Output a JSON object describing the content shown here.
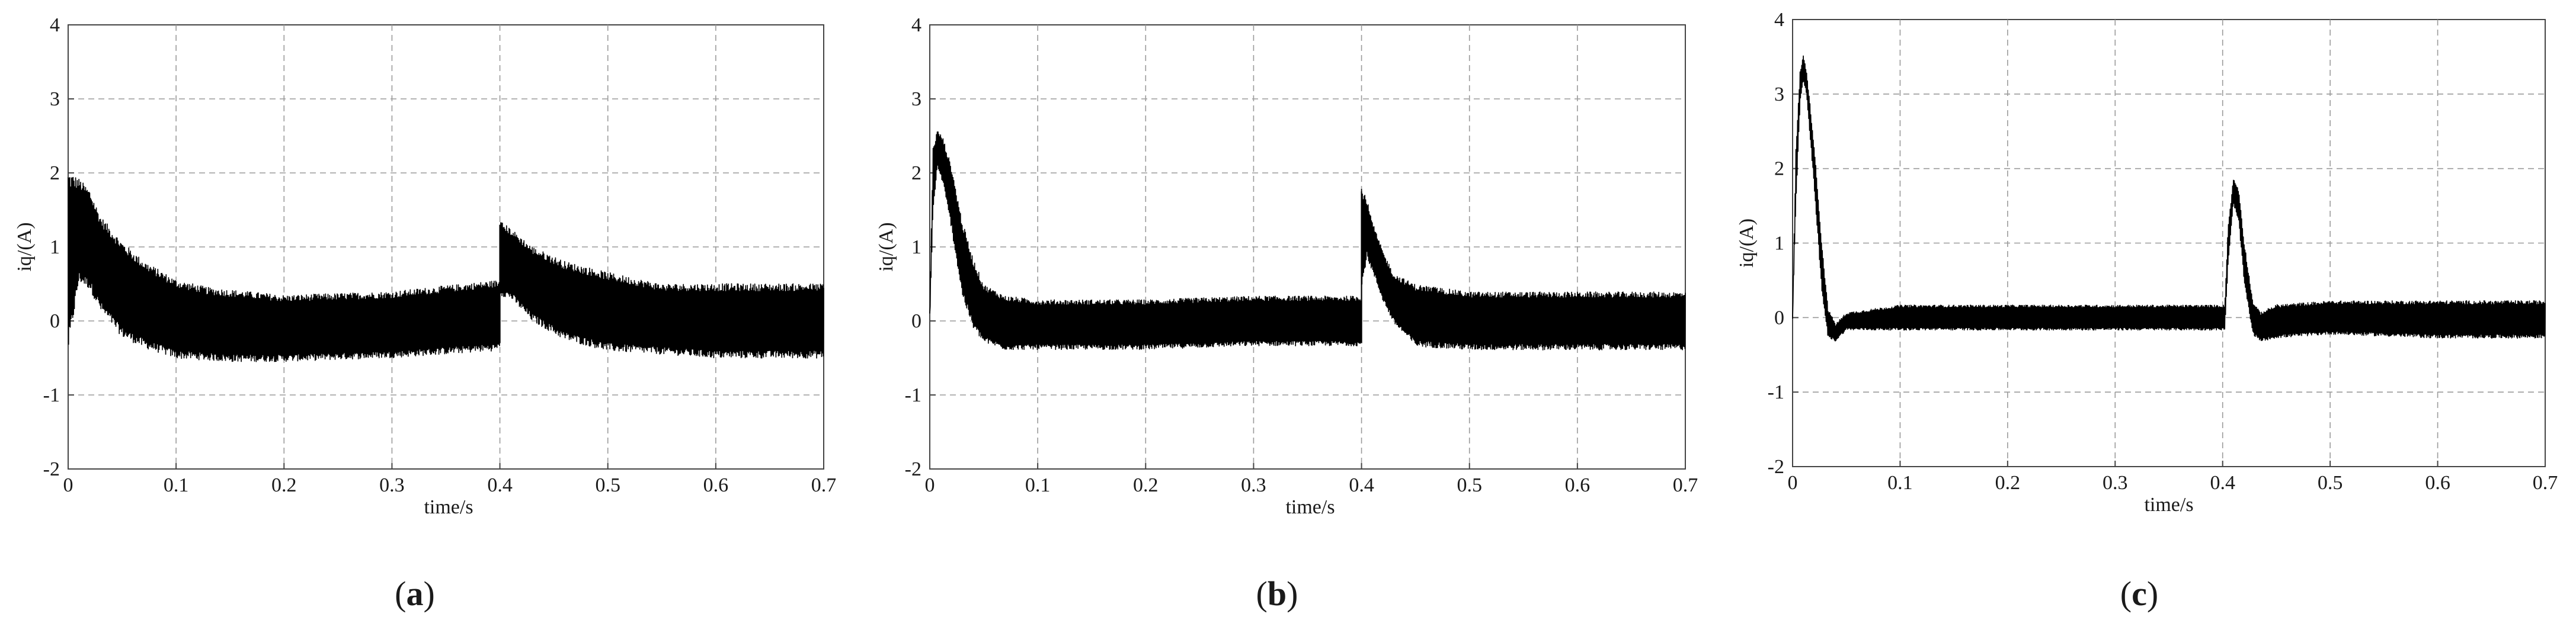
{
  "chart_data": [
    {
      "panel": "a",
      "type": "line",
      "caption_letter": "a",
      "xlabel": "time/s",
      "ylabel": "iq/(A)",
      "xlim": [
        0,
        0.7
      ],
      "ylim": [
        -2,
        4
      ],
      "x_ticks": [
        0,
        0.1,
        0.2,
        0.3,
        0.4,
        0.5,
        0.6,
        0.7
      ],
      "x_tick_labels": [
        "0",
        "0.1",
        "0.2",
        "0.3",
        "0.4",
        "0.5",
        "0.6",
        "0.7"
      ],
      "y_ticks": [
        -2,
        -1,
        0,
        1,
        2,
        3,
        4
      ],
      "y_tick_labels": [
        "-2",
        "-1",
        "0",
        "1",
        "2",
        "3",
        "4"
      ],
      "grid": true,
      "grid_style": "dashed",
      "series": [
        {
          "color": "#000000",
          "upper": [
            [
              0.0,
              1.9
            ],
            [
              0.01,
              1.85
            ],
            [
              0.02,
              1.7
            ],
            [
              0.03,
              1.35
            ],
            [
              0.05,
              1.0
            ],
            [
              0.07,
              0.75
            ],
            [
              0.1,
              0.5
            ],
            [
              0.13,
              0.4
            ],
            [
              0.2,
              0.3
            ],
            [
              0.3,
              0.35
            ],
            [
              0.398,
              0.5
            ],
            [
              0.4,
              0.5
            ]
          ],
          "lower": [
            [
              0.0,
              -0.3
            ],
            [
              0.01,
              0.6
            ],
            [
              0.02,
              0.5
            ],
            [
              0.03,
              0.2
            ],
            [
              0.05,
              -0.15
            ],
            [
              0.07,
              -0.3
            ],
            [
              0.1,
              -0.45
            ],
            [
              0.15,
              -0.5
            ],
            [
              0.2,
              -0.5
            ],
            [
              0.3,
              -0.45
            ],
            [
              0.398,
              -0.35
            ],
            [
              0.4,
              -0.3
            ]
          ],
          "upper2": [
            [
              0.4,
              1.3
            ],
            [
              0.41,
              1.2
            ],
            [
              0.43,
              0.95
            ],
            [
              0.46,
              0.75
            ],
            [
              0.5,
              0.6
            ],
            [
              0.55,
              0.45
            ],
            [
              0.6,
              0.45
            ],
            [
              0.65,
              0.45
            ],
            [
              0.7,
              0.45
            ]
          ],
          "lower2": [
            [
              0.4,
              0.4
            ],
            [
              0.41,
              0.35
            ],
            [
              0.43,
              0.05
            ],
            [
              0.46,
              -0.2
            ],
            [
              0.5,
              -0.35
            ],
            [
              0.55,
              -0.4
            ],
            [
              0.6,
              -0.45
            ],
            [
              0.65,
              -0.45
            ],
            [
              0.7,
              -0.45
            ]
          ]
        }
      ]
    },
    {
      "panel": "b",
      "type": "line",
      "caption_letter": "b",
      "xlabel": "time/s",
      "ylabel": "iq/(A)",
      "xlim": [
        0,
        0.7
      ],
      "ylim": [
        -2,
        4
      ],
      "x_ticks": [
        0,
        0.1,
        0.2,
        0.3,
        0.4,
        0.5,
        0.6,
        0.7
      ],
      "x_tick_labels": [
        "0",
        "0.1",
        "0.2",
        "0.3",
        "0.4",
        "0.5",
        "0.6",
        "0.7"
      ],
      "y_ticks": [
        -2,
        -1,
        0,
        1,
        2,
        3,
        4
      ],
      "y_tick_labels": [
        "-2",
        "-1",
        "0",
        "1",
        "2",
        "3",
        "4"
      ],
      "grid": true,
      "grid_style": "dashed",
      "series": [
        {
          "color": "#000000",
          "upper": [
            [
              0.0,
              0.1
            ],
            [
              0.003,
              2.3
            ],
            [
              0.007,
              2.55
            ],
            [
              0.012,
              2.45
            ],
            [
              0.02,
              2.05
            ],
            [
              0.03,
              1.3
            ],
            [
              0.04,
              0.8
            ],
            [
              0.05,
              0.45
            ],
            [
              0.07,
              0.3
            ],
            [
              0.1,
              0.25
            ],
            [
              0.2,
              0.25
            ],
            [
              0.3,
              0.3
            ],
            [
              0.398,
              0.3
            ],
            [
              0.4,
              0.3
            ]
          ],
          "lower": [
            [
              0.0,
              0.0
            ],
            [
              0.003,
              1.5
            ],
            [
              0.007,
              2.1
            ],
            [
              0.012,
              1.9
            ],
            [
              0.02,
              1.3
            ],
            [
              0.03,
              0.4
            ],
            [
              0.04,
              -0.05
            ],
            [
              0.05,
              -0.25
            ],
            [
              0.07,
              -0.35
            ],
            [
              0.1,
              -0.35
            ],
            [
              0.2,
              -0.35
            ],
            [
              0.3,
              -0.3
            ],
            [
              0.398,
              -0.3
            ],
            [
              0.4,
              -0.3
            ]
          ],
          "upper2": [
            [
              0.4,
              1.75
            ],
            [
              0.405,
              1.6
            ],
            [
              0.41,
              1.3
            ],
            [
              0.42,
              0.9
            ],
            [
              0.43,
              0.6
            ],
            [
              0.45,
              0.45
            ],
            [
              0.5,
              0.35
            ],
            [
              0.6,
              0.35
            ],
            [
              0.7,
              0.35
            ]
          ],
          "lower2": [
            [
              0.4,
              0.5
            ],
            [
              0.405,
              0.9
            ],
            [
              0.41,
              0.7
            ],
            [
              0.42,
              0.3
            ],
            [
              0.43,
              0.0
            ],
            [
              0.45,
              -0.3
            ],
            [
              0.5,
              -0.35
            ],
            [
              0.6,
              -0.35
            ],
            [
              0.7,
              -0.35
            ]
          ]
        }
      ]
    },
    {
      "panel": "c",
      "type": "line",
      "caption_letter": "c",
      "xlabel": "time/s",
      "ylabel": "iq/(A)",
      "xlim": [
        0,
        0.7
      ],
      "ylim": [
        -2,
        4
      ],
      "x_ticks": [
        0,
        0.1,
        0.2,
        0.3,
        0.4,
        0.5,
        0.6,
        0.7
      ],
      "x_tick_labels": [
        "0",
        "0.1",
        "0.2",
        "0.3",
        "0.4",
        "0.5",
        "0.6",
        "0.7"
      ],
      "y_ticks": [
        -2,
        -1,
        0,
        1,
        2,
        3,
        4
      ],
      "y_tick_labels": [
        "-2",
        "-1",
        "0",
        "1",
        "2",
        "3",
        "4"
      ],
      "grid": true,
      "grid_style": "dashed",
      "series": [
        {
          "color": "#000000",
          "upper": [
            [
              0.0,
              0.0
            ],
            [
              0.003,
              2.2
            ],
            [
              0.007,
              3.3
            ],
            [
              0.01,
              3.5
            ],
            [
              0.013,
              3.3
            ],
            [
              0.02,
              2.3
            ],
            [
              0.027,
              1.0
            ],
            [
              0.033,
              0.1
            ],
            [
              0.04,
              -0.1
            ],
            [
              0.05,
              0.05
            ],
            [
              0.1,
              0.15
            ],
            [
              0.2,
              0.15
            ],
            [
              0.3,
              0.15
            ],
            [
              0.4,
              0.15
            ],
            [
              0.402,
              0.15
            ],
            [
              0.405,
              1.2
            ],
            [
              0.41,
              1.85
            ],
            [
              0.415,
              1.7
            ],
            [
              0.42,
              1.0
            ],
            [
              0.428,
              0.2
            ],
            [
              0.435,
              0.05
            ],
            [
              0.45,
              0.15
            ],
            [
              0.5,
              0.2
            ],
            [
              0.6,
              0.2
            ],
            [
              0.7,
              0.2
            ]
          ],
          "lower": [
            [
              0.0,
              0.0
            ],
            [
              0.003,
              1.5
            ],
            [
              0.007,
              2.9
            ],
            [
              0.01,
              3.2
            ],
            [
              0.013,
              3.0
            ],
            [
              0.02,
              1.8
            ],
            [
              0.027,
              0.4
            ],
            [
              0.033,
              -0.25
            ],
            [
              0.04,
              -0.3
            ],
            [
              0.05,
              -0.15
            ],
            [
              0.1,
              -0.15
            ],
            [
              0.2,
              -0.15
            ],
            [
              0.3,
              -0.15
            ],
            [
              0.4,
              -0.15
            ],
            [
              0.402,
              -0.15
            ],
            [
              0.405,
              0.7
            ],
            [
              0.41,
              1.55
            ],
            [
              0.415,
              1.3
            ],
            [
              0.42,
              0.5
            ],
            [
              0.428,
              -0.2
            ],
            [
              0.435,
              -0.3
            ],
            [
              0.45,
              -0.25
            ],
            [
              0.5,
              -0.2
            ],
            [
              0.6,
              -0.25
            ],
            [
              0.7,
              -0.25
            ]
          ]
        }
      ]
    }
  ]
}
